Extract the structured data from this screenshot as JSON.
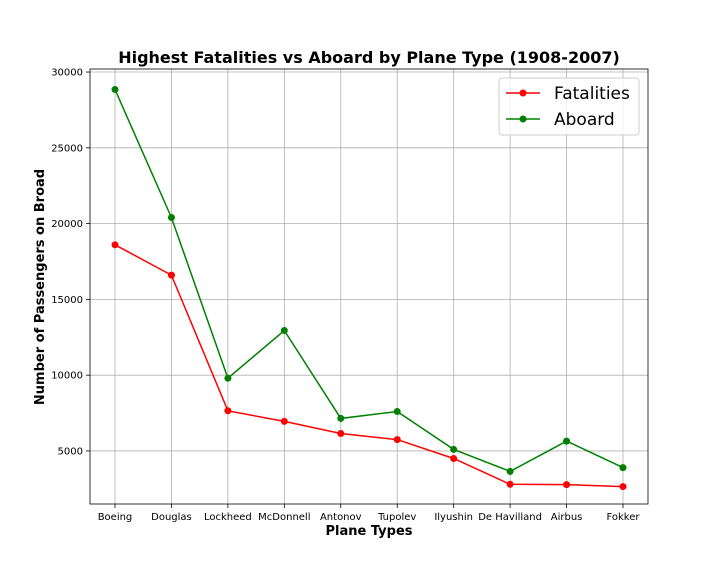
{
  "chart_data": {
    "type": "line",
    "title": "Highest Fatalities vs Aboard by Plane Type (1908-2007)",
    "xlabel": "Plane Types",
    "ylabel": "Number of Passengers on Broad",
    "categories": [
      "Boeing",
      "Douglas",
      "Lockheed",
      "McDonnell",
      "Antonov",
      "Tupolev",
      "Ilyushin",
      "De Havilland",
      "Airbus",
      "Fokker"
    ],
    "ylim": [
      1500,
      30200
    ],
    "yticks": [
      5000,
      10000,
      15000,
      20000,
      25000,
      30000
    ],
    "grid": true,
    "legend_position": "top-right",
    "series": [
      {
        "name": "Fatalities",
        "color": "#ff0000",
        "values": [
          18600,
          16600,
          7650,
          6950,
          6150,
          5750,
          4500,
          2800,
          2780,
          2650
        ]
      },
      {
        "name": "Aboard",
        "color": "#008000",
        "values": [
          28850,
          20400,
          9800,
          12950,
          7150,
          7600,
          5100,
          3650,
          5650,
          3900
        ]
      }
    ]
  }
}
